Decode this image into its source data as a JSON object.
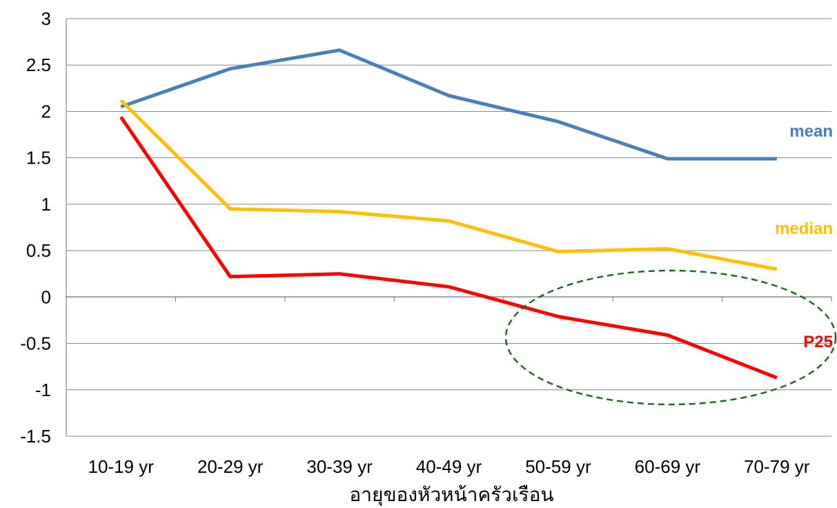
{
  "chart_data": {
    "type": "line",
    "categories": [
      "10-19 yr",
      "20-29 yr",
      "30-39 yr",
      "40-49 yr",
      "50-59 yr",
      "60-69 yr",
      "70-79 yr"
    ],
    "series": [
      {
        "name": "mean",
        "color": "#4a7ebb",
        "values": [
          2.05,
          2.46,
          2.66,
          2.17,
          1.89,
          1.49,
          1.49
        ]
      },
      {
        "name": "median",
        "color": "#ffc000",
        "values": [
          2.12,
          0.95,
          0.92,
          0.82,
          0.49,
          0.52,
          0.3
        ]
      },
      {
        "name": "P25",
        "color": "#ff0000",
        "values": [
          1.94,
          0.22,
          0.25,
          0.11,
          -0.21,
          -0.41,
          -0.87
        ]
      }
    ],
    "y_ticks": [
      "3",
      "2.5",
      "2",
      "1.5",
      "1",
      "0.5",
      "0",
      "-0.5",
      "-1",
      "-1.5"
    ],
    "ylim": [
      -1.5,
      3
    ],
    "xlabel": "อายุของหัวหน้าครัวเรือน",
    "ylabel": "",
    "title": "",
    "grid": true,
    "legend": "inline labels at right end of each series",
    "annotations": [
      {
        "type": "dashed-ellipse",
        "color": "#1e6b1e",
        "around": "50-59 yr to 70-79 yr, around y 0 to -1"
      }
    ]
  }
}
